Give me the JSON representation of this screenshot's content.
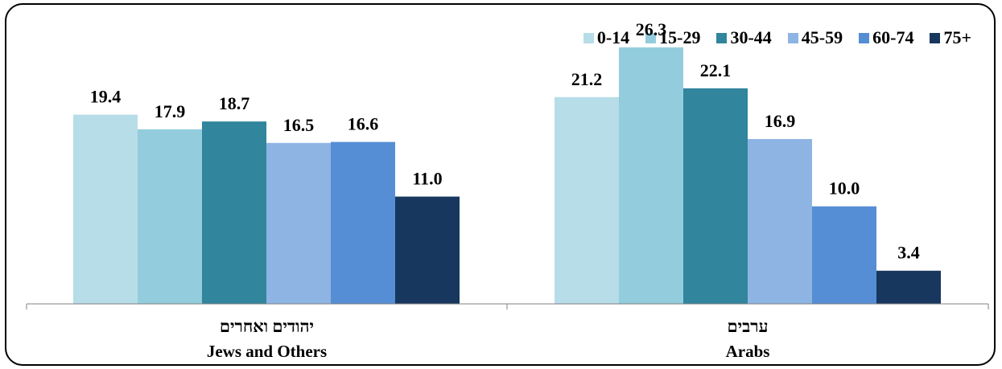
{
  "chart_data": {
    "type": "bar",
    "categories": [
      {
        "he": "יהודים ואחרים",
        "en": "Jews and Others"
      },
      {
        "he": "ערבים",
        "en": "Arabs"
      }
    ],
    "series": [
      {
        "name": "0-14",
        "color": "#b7dde8",
        "values": [
          19.4,
          21.2
        ]
      },
      {
        "name": "15-29",
        "color": "#93cddd",
        "values": [
          17.9,
          26.3
        ]
      },
      {
        "name": "30-44",
        "color": "#31859c",
        "values": [
          18.7,
          22.1
        ]
      },
      {
        "name": "45-59",
        "color": "#8eb4e3",
        "values": [
          16.5,
          16.9
        ]
      },
      {
        "name": "60-74",
        "color": "#558ed5",
        "values": [
          16.6,
          10.0
        ]
      },
      {
        "name": "75+",
        "color": "#17375e",
        "values": [
          11.0,
          3.4
        ]
      }
    ],
    "value_labels": [
      [
        "19.4",
        "21.2"
      ],
      [
        "17.9",
        "26.3"
      ],
      [
        "18.7",
        "22.1"
      ],
      [
        "16.5",
        "16.9"
      ],
      [
        "16.6",
        "10.0"
      ],
      [
        "11.0",
        "3.4"
      ]
    ],
    "ylim": [
      0,
      30
    ],
    "grid": false,
    "legend_position": "top-right"
  }
}
